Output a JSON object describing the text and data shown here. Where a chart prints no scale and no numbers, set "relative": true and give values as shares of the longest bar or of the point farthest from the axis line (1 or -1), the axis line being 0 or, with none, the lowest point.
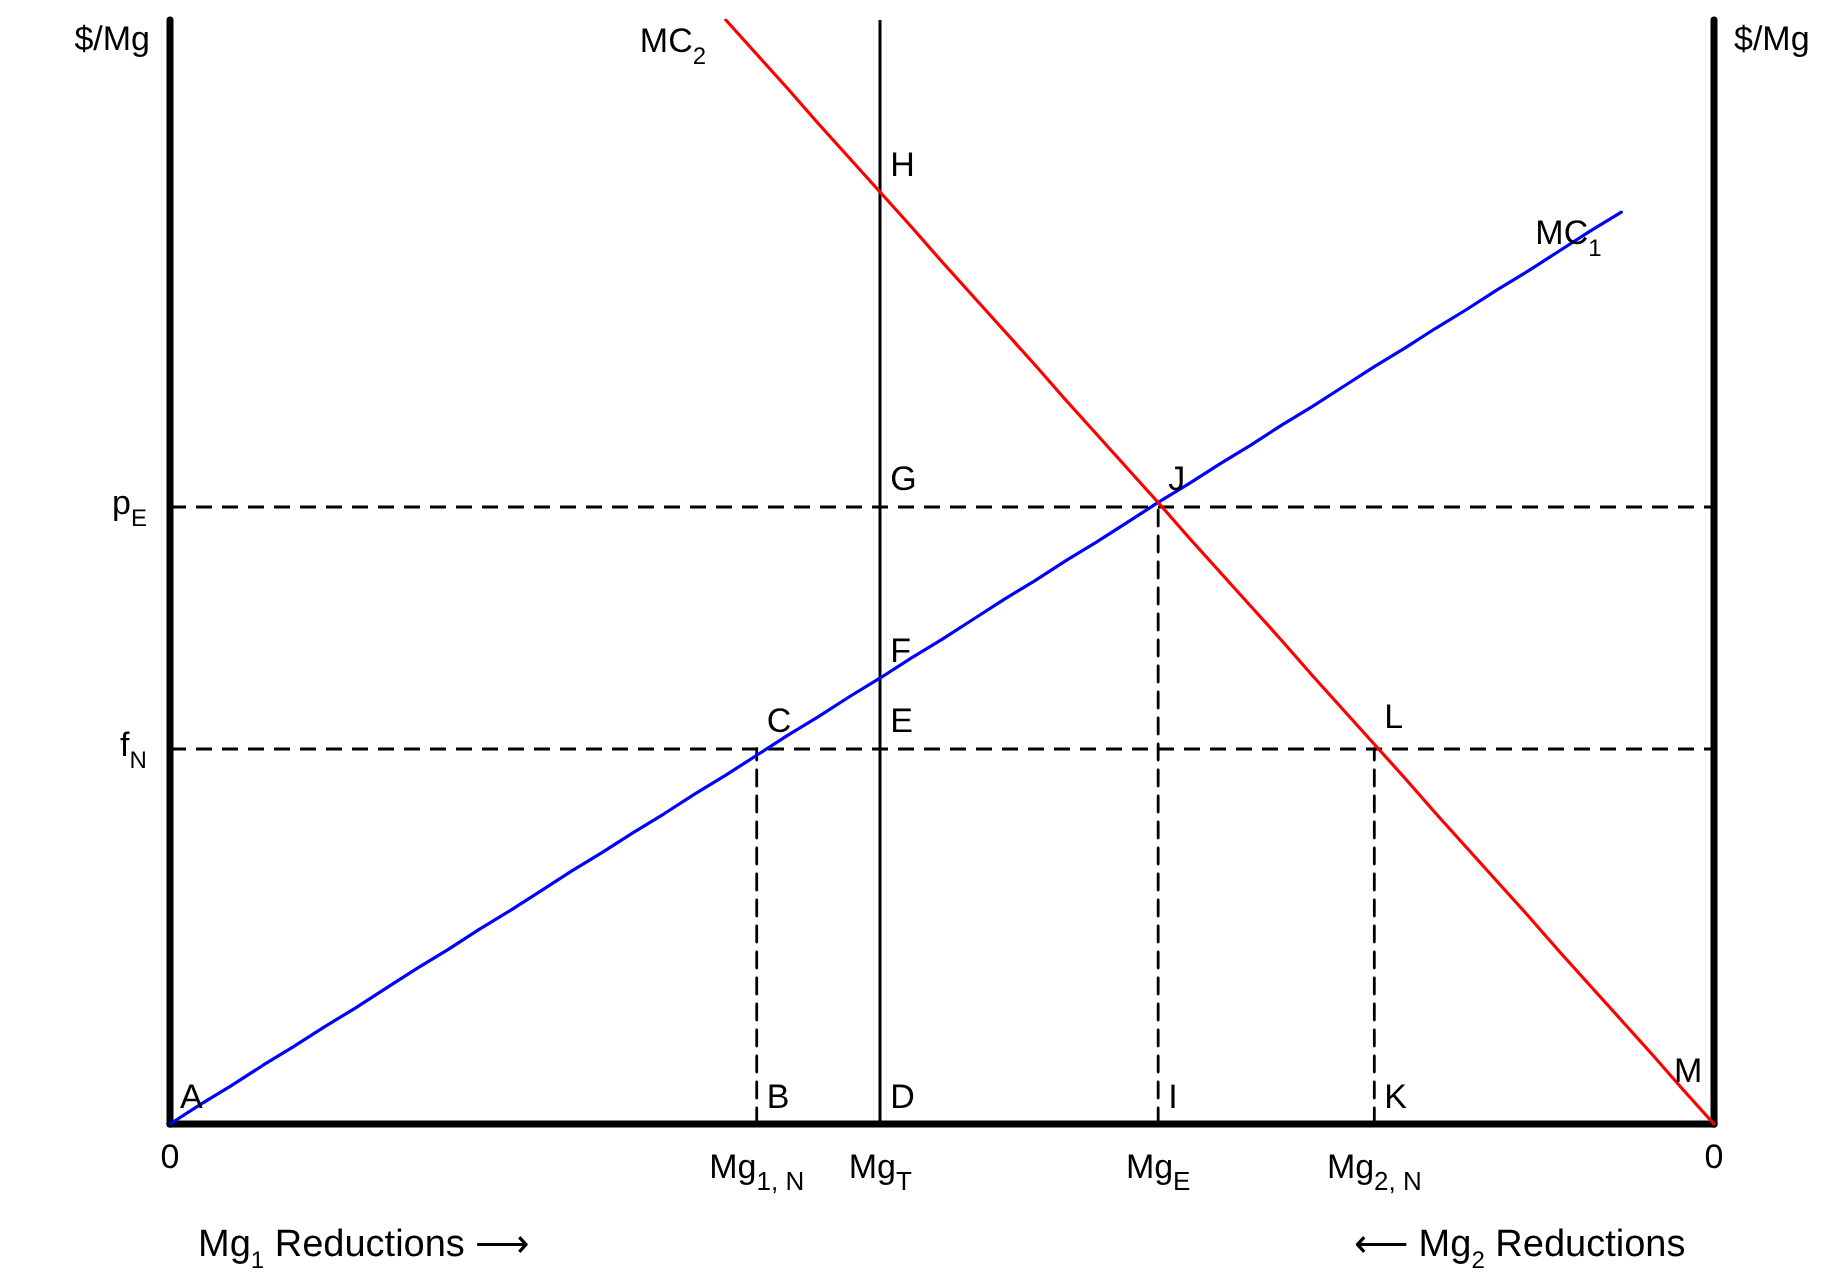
{
  "chart_data": {
    "type": "line",
    "relative": true,
    "ylabel": "$/Mg",
    "y2label": "$/Mg",
    "marker": "none",
    "categories": [
      "0",
      null,
      null,
      null,
      null,
      null,
      null,
      null,
      null,
      null,
      null,
      null,
      null,
      null,
      null,
      null,
      null,
      null,
      null,
      "Mg$_{1, N}$",
      null,
      null,
      null,
      "Mg$_{T}$",
      null,
      null,
      null,
      null,
      null,
      null,
      null,
      null,
      "Mg$_{E}$",
      null,
      null,
      null,
      null,
      null,
      null,
      "Mg$_{2, N}$",
      null,
      null,
      null,
      null,
      null,
      null,
      null,
      null,
      null,
      null,
      "0"
    ],
    "series": [
      {
        "name": "MC$_{1}$",
        "color": "#0000ff",
        "values": [
          0,
          0.018,
          0.035,
          0.053,
          0.07,
          0.088,
          0.105,
          0.123,
          0.141,
          0.158,
          0.176,
          0.193,
          0.211,
          0.229,
          0.246,
          0.264,
          0.281,
          0.299,
          0.316,
          0.334,
          0.352,
          0.369,
          0.387,
          0.404,
          0.422,
          0.439,
          0.457,
          0.475,
          0.492,
          0.51,
          0.527,
          0.545,
          0.563,
          0.58,
          0.598,
          0.615,
          0.633,
          0.65,
          0.668,
          0.686,
          0.703,
          0.721,
          0.738,
          0.756,
          0.773,
          0.791,
          0.809,
          0.826,
          null,
          null,
          null
        ]
      },
      {
        "name": "MC$_{2}$",
        "color": "#ff0000",
        "values": [
          null,
          null,
          null,
          null,
          null,
          null,
          null,
          null,
          null,
          null,
          null,
          null,
          null,
          null,
          null,
          null,
          null,
          null,
          1,
          0.969,
          0.938,
          0.906,
          0.875,
          0.844,
          0.813,
          0.781,
          0.75,
          0.719,
          0.688,
          0.656,
          0.625,
          0.594,
          0.563,
          0.531,
          0.5,
          0.469,
          0.438,
          0.406,
          0.375,
          0.344,
          0.313,
          0.281,
          0.25,
          0.219,
          0.188,
          0.156,
          0.125,
          0.094,
          0.063,
          0.031,
          0
        ]
      },
      {
        "color": "#000000",
        "line_style": "dashed",
        "x": [
          "Mg$_{1, N}$",
          "Mg$_{1, N}$"
        ],
        "values": [
          0,
          0.34
        ]
      },
      {
        "color": "#000000",
        "line_style": "dashed",
        "x": [
          "Mg$_{E}$",
          "Mg$_{E}$"
        ],
        "values": [
          0,
          0.56
        ]
      },
      {
        "color": "#000000",
        "line_style": "dashed",
        "x": [
          "Mg$_{2, N}$",
          "Mg$_{2, N}$"
        ],
        "values": [
          0,
          0.34
        ]
      }
    ],
    "ref_lines": [
      {
        "axis": "y",
        "value": 0.56,
        "label": "p$_{E}$",
        "color": "#000000",
        "line_style": "dashed"
      },
      {
        "axis": "y",
        "value": 0.34,
        "label": "f$_{N}$",
        "color": "#000000",
        "line_style": "dashed"
      },
      {
        "axis": "x",
        "value": "Mg$_{T}$",
        "color": "#000000",
        "line_style": "solid"
      }
    ],
    "annotations": [
      {
        "text": "A",
        "x": "0",
        "y": 0
      },
      {
        "text": "B",
        "x": "Mg$_{1, N}$",
        "y": 0
      },
      {
        "text": "C",
        "x": "Mg$_{1, N}$",
        "y": 0.34
      },
      {
        "text": "D",
        "x": "Mg$_{T}$",
        "y": 0
      },
      {
        "text": "E",
        "x": "Mg$_{T}$",
        "y": 0.34
      },
      {
        "text": "F",
        "x": "Mg$_{T}$",
        "y": 0.404
      },
      {
        "text": "G",
        "x": "Mg$_{T}$",
        "y": 0.56
      },
      {
        "text": "H",
        "x": "Mg$_{T}$",
        "y": 0.844
      },
      {
        "text": "I",
        "x": "Mg$_{E}$",
        "y": 0
      },
      {
        "text": "J",
        "x": "Mg$_{E}$",
        "y": 0.56
      },
      {
        "text": "K",
        "x": "Mg$_{2, N}$",
        "y": 0
      },
      {
        "text": "L",
        "x": "Mg$_{2, N}$",
        "y": 0.344
      },
      "M",
      "Mg$_{1}$ Reductions ⟶",
      "⟵ Mg$_{2}$ Reductions"
    ]
  }
}
